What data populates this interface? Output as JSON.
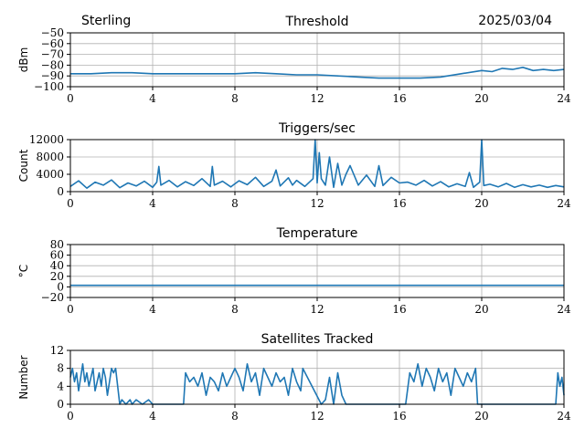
{
  "header": {
    "station": "Sterling",
    "date": "2025/03/04"
  },
  "colors": {
    "line": "#1f77b4",
    "grid": "#b0b0b0",
    "axis": "#000000"
  },
  "chart_data": [
    {
      "id": "threshold",
      "type": "line",
      "title": "Threshold",
      "xlabel": "",
      "ylabel": "dBm",
      "xlim": [
        0,
        24
      ],
      "ylim": [
        -100,
        -50
      ],
      "x_ticks": [
        0,
        4,
        8,
        12,
        16,
        20,
        24
      ],
      "y_ticks": [
        -100,
        -90,
        -80,
        -70,
        -60,
        -50
      ],
      "y_tick_labels": [
        "−100",
        "−90",
        "−80",
        "−70",
        "−60",
        "−50"
      ],
      "grid": true,
      "x": [
        0,
        1,
        2,
        3,
        4,
        5,
        6,
        7,
        8,
        9,
        10,
        11,
        12,
        13,
        14,
        15,
        16,
        17,
        18,
        19,
        20,
        20.5,
        21,
        21.5,
        22,
        22.5,
        23,
        23.5,
        24
      ],
      "y": [
        -88,
        -88,
        -87,
        -87,
        -88,
        -88,
        -88,
        -88,
        -88,
        -87,
        -88,
        -89,
        -89,
        -90,
        -91,
        -92,
        -92,
        -92,
        -91,
        -88,
        -85,
        -86,
        -83,
        -84,
        -82,
        -85,
        -84,
        -85,
        -84
      ]
    },
    {
      "id": "triggers",
      "type": "line",
      "title": "Triggers/sec",
      "xlabel": "",
      "ylabel": "Count",
      "xlim": [
        0,
        24
      ],
      "ylim": [
        0,
        12000
      ],
      "x_ticks": [
        0,
        4,
        8,
        12,
        16,
        20,
        24
      ],
      "y_ticks": [
        0,
        4000,
        8000,
        12000
      ],
      "y_tick_labels": [
        "0",
        "4000",
        "8000",
        "12000"
      ],
      "grid": true,
      "x": [
        0,
        0.4,
        0.8,
        1.2,
        1.6,
        2.0,
        2.4,
        2.8,
        3.2,
        3.6,
        4.0,
        4.2,
        4.3,
        4.4,
        4.8,
        5.2,
        5.6,
        6.0,
        6.4,
        6.8,
        6.9,
        7.0,
        7.4,
        7.8,
        8.2,
        8.6,
        9.0,
        9.4,
        9.8,
        10.0,
        10.2,
        10.6,
        10.8,
        11.0,
        11.4,
        11.8,
        11.9,
        12.0,
        12.1,
        12.2,
        12.4,
        12.6,
        12.8,
        13.0,
        13.2,
        13.4,
        13.6,
        14.0,
        14.4,
        14.8,
        15.0,
        15.2,
        15.6,
        16.0,
        16.4,
        16.8,
        17.2,
        17.6,
        18.0,
        18.4,
        18.8,
        19.2,
        19.4,
        19.6,
        19.9,
        20.0,
        20.1,
        20.4,
        20.8,
        21.2,
        21.6,
        22.0,
        22.4,
        22.8,
        23.2,
        23.6,
        24.0
      ],
      "y": [
        1200,
        2500,
        800,
        2200,
        1500,
        2700,
        900,
        2000,
        1300,
        2400,
        1000,
        2200,
        5800,
        1500,
        2600,
        1100,
        2300,
        1400,
        3000,
        1200,
        5800,
        1500,
        2400,
        1100,
        2500,
        1600,
        3300,
        1200,
        2400,
        5000,
        1300,
        3200,
        1500,
        2600,
        1200,
        3000,
        12000,
        2000,
        9000,
        3000,
        1500,
        8000,
        1000,
        6500,
        1500,
        4000,
        6000,
        1500,
        3800,
        1200,
        6000,
        1400,
        3300,
        2000,
        2200,
        1500,
        2600,
        1300,
        2300,
        1100,
        1800,
        1200,
        4400,
        1000,
        2200,
        12000,
        1400,
        1700,
        1100,
        1900,
        1000,
        1600,
        1100,
        1500,
        1000,
        1400,
        1100
      ]
    },
    {
      "id": "temperature",
      "type": "line",
      "title": "Temperature",
      "xlabel": "",
      "ylabel": "°C",
      "xlim": [
        0,
        24
      ],
      "ylim": [
        -20,
        80
      ],
      "x_ticks": [
        0,
        4,
        8,
        12,
        16,
        20,
        24
      ],
      "y_ticks": [
        -20,
        0,
        20,
        40,
        60,
        80
      ],
      "y_tick_labels": [
        "−20",
        "0",
        "20",
        "40",
        "60",
        "80"
      ],
      "grid": true,
      "x": [
        0,
        6,
        12,
        18,
        24
      ],
      "y": [
        3,
        3,
        3,
        3,
        3
      ]
    },
    {
      "id": "satellites",
      "type": "line",
      "title": "Satellites Tracked",
      "xlabel": "",
      "ylabel": "Number",
      "xlim": [
        0,
        24
      ],
      "ylim": [
        0,
        12
      ],
      "x_ticks": [
        0,
        4,
        8,
        12,
        16,
        20,
        24
      ],
      "y_ticks": [
        0,
        4,
        8,
        12
      ],
      "y_tick_labels": [
        "0",
        "4",
        "8",
        "12"
      ],
      "grid": true,
      "x": [
        0,
        0.1,
        0.2,
        0.3,
        0.4,
        0.5,
        0.6,
        0.7,
        0.8,
        0.9,
        1.0,
        1.1,
        1.2,
        1.3,
        1.4,
        1.5,
        1.6,
        1.7,
        1.8,
        1.9,
        2.0,
        2.1,
        2.2,
        2.4,
        2.5,
        2.7,
        2.9,
        3.0,
        3.2,
        3.5,
        3.8,
        4.0,
        5.5,
        5.6,
        5.8,
        6.0,
        6.2,
        6.4,
        6.6,
        6.8,
        7.0,
        7.2,
        7.4,
        7.6,
        7.8,
        8.0,
        8.2,
        8.4,
        8.6,
        8.8,
        9.0,
        9.2,
        9.4,
        9.6,
        9.8,
        10.0,
        10.2,
        10.4,
        10.6,
        10.8,
        11.0,
        11.2,
        11.3,
        12.2,
        12.4,
        12.6,
        12.8,
        13.0,
        13.2,
        13.4,
        16.3,
        16.5,
        16.7,
        16.9,
        17.1,
        17.3,
        17.5,
        17.7,
        17.9,
        18.1,
        18.3,
        18.5,
        18.7,
        18.9,
        19.1,
        19.3,
        19.5,
        19.7,
        19.8,
        20.0,
        23.6,
        23.7,
        23.8,
        23.9,
        24.0
      ],
      "y": [
        6,
        8,
        5,
        7,
        3,
        6,
        9,
        5,
        7,
        4,
        6,
        8,
        3,
        5,
        7,
        4,
        8,
        6,
        2,
        5,
        8,
        7,
        8,
        0,
        1,
        0,
        1,
        0,
        1,
        0,
        1,
        0,
        0,
        7,
        5,
        6,
        4,
        7,
        2,
        6,
        5,
        3,
        7,
        4,
        6,
        8,
        6,
        3,
        9,
        5,
        7,
        2,
        8,
        6,
        4,
        7,
        5,
        6,
        2,
        8,
        5,
        3,
        8,
        0,
        1,
        6,
        0,
        7,
        2,
        0,
        0,
        7,
        5,
        9,
        4,
        8,
        6,
        3,
        8,
        5,
        7,
        2,
        8,
        6,
        4,
        7,
        5,
        8,
        0,
        0,
        0,
        7,
        4,
        6,
        2
      ]
    }
  ]
}
